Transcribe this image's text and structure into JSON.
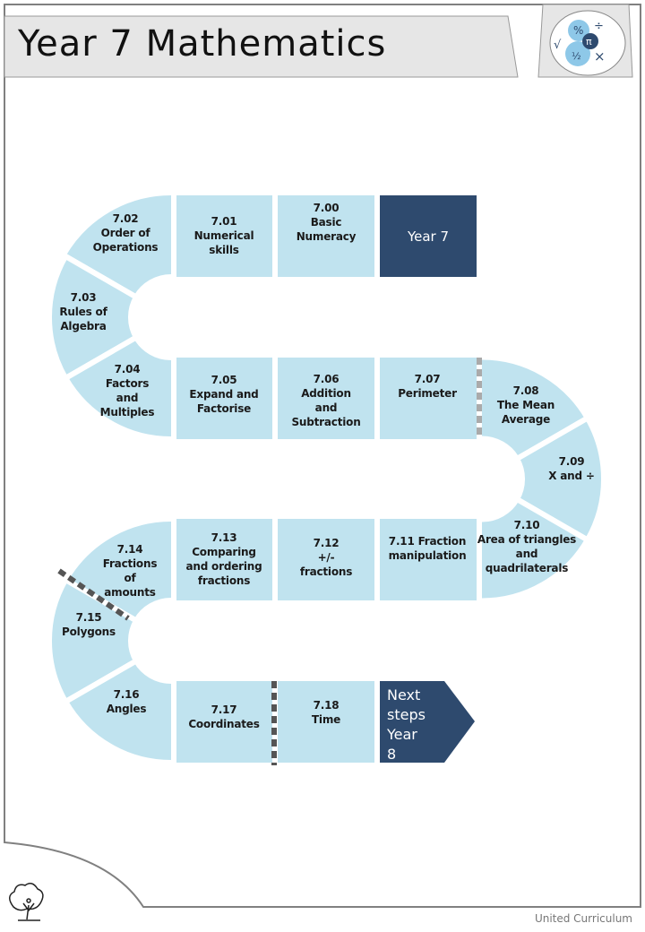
{
  "header": {
    "title": "Year 7 Mathematics",
    "logo_icon": "maths-symbols-icon"
  },
  "colors": {
    "tile": "#c0e3ef",
    "dark": "#2e4a6e",
    "frame": "#808080",
    "banner": "#e6e6e6"
  },
  "start": {
    "label": "Year 7"
  },
  "tiles": [
    {
      "label": "7.00\nBasic\nNumeracy"
    },
    {
      "label": "7.01\nNumerical\nskills"
    },
    {
      "label": "7.02\nOrder of\nOperations"
    },
    {
      "label": "7.03\nRules of\nAlgebra"
    },
    {
      "label": "7.04\nFactors\nand\nMultiples"
    },
    {
      "label": "7.05\nExpand and\nFactorise"
    },
    {
      "label": "7.06\nAddition\nand\nSubtraction"
    },
    {
      "label": "7.07\nPerimeter"
    },
    {
      "label": "7.08\nThe Mean\nAverage"
    },
    {
      "label": "7.09\nX and ÷"
    },
    {
      "label": "7.10\nArea of triangles\nand\nquadrilaterals"
    },
    {
      "label": "7.11 Fraction\nmanipulation"
    },
    {
      "label": "7.12\n+/-\nfractions"
    },
    {
      "label": "7.13\nComparing\nand ordering\nfractions"
    },
    {
      "label": "7.14\nFractions\nof\namounts"
    },
    {
      "label": "7.15\nPolygons"
    },
    {
      "label": "7.16\nAngles"
    },
    {
      "label": "7.17\nCoordinates"
    },
    {
      "label": "7.18\nTime"
    }
  ],
  "end": {
    "label": "Next\nsteps\nYear\n8"
  },
  "footer": {
    "brand": "United Curriculum",
    "logo_icon": "tree-person-logo-icon"
  }
}
